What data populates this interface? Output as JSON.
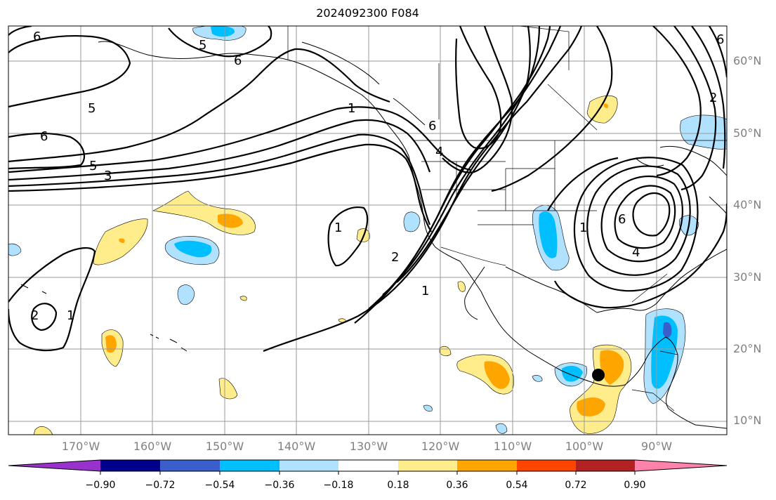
{
  "title": "2024092300 F084",
  "lat_labels": [
    "60°N",
    "50°N",
    "40°N",
    "30°N",
    "20°N",
    "10°N"
  ],
  "lon_labels": [
    "170°W",
    "160°W",
    "150°W",
    "140°W",
    "130°W",
    "120°W",
    "110°W",
    "100°W",
    "90°W"
  ],
  "colorbar": {
    "tick_labels": [
      "−0.90",
      "−0.72",
      "−0.54",
      "−0.36",
      "−0.18",
      "0.18",
      "0.36",
      "0.54",
      "0.72",
      "0.90"
    ],
    "colors": [
      "#9932cc",
      "#00008b",
      "#3a5fcd",
      "#00bfff",
      "#b0e2ff",
      "#ffffff",
      "#ffec8b",
      "#ffa500",
      "#ff4500",
      "#b22222",
      "#ff82ab"
    ]
  },
  "fill_colors": {
    "light_blue": "#b0e2ff",
    "blue": "#00bfff",
    "mid_blue": "#3a5fcd",
    "yellow": "#ffec8b",
    "orange": "#ffa500"
  },
  "contour_labels": [
    "6",
    "5",
    "6",
    "5",
    "6",
    "5",
    "3",
    "6",
    "4",
    "1",
    "2",
    "1",
    "1",
    "2",
    "1",
    "6",
    "4",
    "1",
    "2",
    "6"
  ],
  "storm_marker": "filled-circle"
}
